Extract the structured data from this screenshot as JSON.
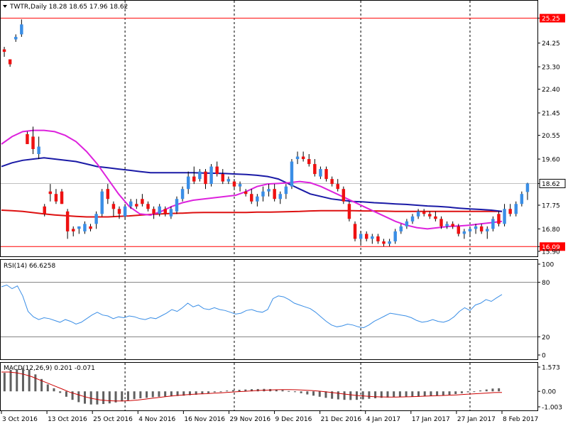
{
  "chart_data": [
    {
      "type": "candlestick",
      "header": "TWTR,Daily  18.28 18.65 17.96 18.62",
      "yaxis_ticks": [
        "25.25",
        "24.25",
        "23.30",
        "22.40",
        "21.45",
        "20.55",
        "19.60",
        "18.62",
        "17.75",
        "16.80",
        "16.09",
        "15.90"
      ],
      "ylim": [
        15.7,
        25.95
      ],
      "hlines": [
        {
          "value": 25.25,
          "label": "25.25",
          "color": "#ff0000"
        },
        {
          "value": 16.09,
          "label": "16.09",
          "color": "#ff0000"
        },
        {
          "value": 18.62,
          "label": "18.62",
          "color": "#c0c0c0"
        }
      ],
      "up_color": "#3a8ee6",
      "down_color": "#ee1111",
      "candles": [
        [
          24.0,
          24.1,
          23.7,
          23.9
        ],
        [
          23.6,
          23.6,
          23.3,
          23.4
        ],
        [
          24.4,
          24.6,
          24.3,
          24.5
        ],
        [
          24.6,
          25.2,
          24.5,
          25.0
        ],
        [
          20.6,
          20.7,
          20.2,
          20.2
        ],
        [
          20.5,
          20.9,
          19.8,
          20.0
        ],
        [
          19.8,
          20.5,
          19.6,
          20.1
        ],
        [
          17.7,
          17.8,
          17.3,
          17.4
        ],
        [
          18.3,
          18.6,
          17.9,
          18.2
        ],
        [
          18.2,
          18.4,
          17.8,
          17.9
        ],
        [
          18.3,
          18.4,
          17.8,
          17.8
        ],
        [
          17.5,
          17.6,
          16.4,
          16.7
        ],
        [
          16.8,
          16.9,
          16.5,
          16.7
        ],
        [
          16.8,
          16.9,
          16.6,
          16.9
        ],
        [
          16.7,
          17.1,
          16.6,
          17.0
        ],
        [
          16.9,
          17.0,
          16.7,
          16.8
        ],
        [
          17.0,
          17.5,
          16.8,
          17.4
        ],
        [
          17.4,
          18.4,
          17.3,
          18.3
        ],
        [
          18.4,
          18.6,
          17.8,
          18.0
        ],
        [
          17.8,
          17.9,
          17.3,
          17.6
        ],
        [
          17.6,
          17.7,
          17.2,
          17.4
        ],
        [
          17.3,
          17.8,
          17.2,
          17.7
        ],
        [
          17.7,
          18.0,
          17.6,
          17.9
        ],
        [
          17.8,
          18.0,
          17.6,
          17.7
        ],
        [
          18.0,
          18.2,
          17.7,
          17.8
        ],
        [
          17.8,
          17.9,
          17.5,
          17.6
        ],
        [
          17.6,
          17.7,
          17.2,
          17.4
        ],
        [
          17.4,
          17.8,
          17.3,
          17.7
        ],
        [
          17.6,
          17.7,
          17.3,
          17.4
        ],
        [
          17.3,
          17.7,
          17.2,
          17.6
        ],
        [
          17.5,
          18.1,
          17.4,
          18.0
        ],
        [
          18.0,
          18.5,
          17.9,
          18.4
        ],
        [
          18.4,
          19.1,
          18.2,
          18.9
        ],
        [
          18.9,
          19.3,
          18.6,
          18.7
        ],
        [
          18.8,
          19.2,
          18.7,
          19.1
        ],
        [
          19.1,
          19.2,
          18.4,
          18.6
        ],
        [
          18.6,
          19.4,
          18.5,
          19.3
        ],
        [
          19.3,
          19.5,
          18.9,
          19.0
        ],
        [
          19.0,
          19.2,
          18.6,
          18.7
        ],
        [
          18.7,
          18.9,
          18.6,
          18.8
        ],
        [
          18.7,
          18.8,
          18.4,
          18.5
        ],
        [
          18.5,
          18.7,
          18.3,
          18.6
        ],
        [
          18.3,
          18.4,
          18.1,
          18.2
        ],
        [
          18.2,
          18.4,
          17.8,
          17.9
        ],
        [
          17.9,
          18.2,
          17.7,
          18.1
        ],
        [
          18.1,
          18.5,
          17.9,
          18.3
        ],
        [
          18.3,
          18.6,
          18.1,
          18.4
        ],
        [
          18.4,
          18.6,
          17.9,
          18.0
        ],
        [
          18.0,
          18.3,
          17.8,
          18.2
        ],
        [
          18.2,
          18.6,
          18.0,
          18.5
        ],
        [
          18.5,
          19.6,
          18.4,
          19.5
        ],
        [
          19.6,
          19.9,
          19.4,
          19.7
        ],
        [
          19.7,
          19.9,
          19.5,
          19.6
        ],
        [
          19.6,
          19.8,
          19.3,
          19.4
        ],
        [
          19.4,
          19.6,
          18.9,
          19.0
        ],
        [
          18.9,
          19.3,
          18.8,
          19.2
        ],
        [
          19.2,
          19.3,
          18.7,
          18.8
        ],
        [
          18.8,
          18.9,
          18.5,
          18.6
        ],
        [
          18.6,
          18.8,
          18.3,
          18.4
        ],
        [
          18.4,
          18.5,
          17.8,
          17.9
        ],
        [
          17.8,
          17.9,
          17.1,
          17.2
        ],
        [
          17.0,
          17.1,
          16.3,
          16.4
        ],
        [
          16.4,
          16.7,
          16.2,
          16.6
        ],
        [
          16.6,
          16.7,
          16.3,
          16.4
        ],
        [
          16.4,
          16.6,
          16.2,
          16.5
        ],
        [
          16.5,
          16.6,
          16.2,
          16.3
        ],
        [
          16.3,
          16.4,
          16.1,
          16.2
        ],
        [
          16.2,
          16.4,
          16.1,
          16.3
        ],
        [
          16.3,
          16.8,
          16.2,
          16.7
        ],
        [
          16.7,
          17.0,
          16.6,
          16.9
        ],
        [
          16.9,
          17.2,
          16.8,
          17.1
        ],
        [
          17.1,
          17.4,
          17.0,
          17.3
        ],
        [
          17.3,
          17.6,
          17.2,
          17.5
        ],
        [
          17.5,
          17.6,
          17.3,
          17.4
        ],
        [
          17.4,
          17.5,
          17.2,
          17.3
        ],
        [
          17.3,
          17.5,
          17.1,
          17.2
        ],
        [
          17.2,
          17.3,
          16.8,
          16.9
        ],
        [
          16.9,
          17.1,
          16.8,
          17.0
        ],
        [
          17.0,
          17.1,
          16.8,
          16.9
        ],
        [
          16.9,
          17.0,
          16.5,
          16.6
        ],
        [
          16.6,
          16.8,
          16.4,
          16.7
        ],
        [
          16.7,
          16.9,
          16.5,
          16.8
        ],
        [
          16.8,
          17.0,
          16.6,
          16.9
        ],
        [
          16.9,
          17.0,
          16.6,
          16.7
        ],
        [
          16.7,
          16.9,
          16.4,
          16.8
        ],
        [
          16.8,
          17.3,
          16.7,
          17.2
        ],
        [
          17.4,
          17.5,
          16.9,
          17.0
        ],
        [
          17.0,
          17.8,
          16.9,
          17.6
        ],
        [
          17.6,
          17.8,
          17.3,
          17.4
        ],
        [
          17.4,
          17.9,
          17.3,
          17.8
        ],
        [
          17.8,
          18.3,
          17.7,
          18.2
        ],
        [
          18.28,
          18.65,
          17.96,
          18.62
        ]
      ],
      "ma_blue": [
        19.3,
        19.45,
        19.55,
        19.6,
        19.65,
        19.6,
        19.55,
        19.5,
        19.4,
        19.3,
        19.25,
        19.2,
        19.15,
        19.1,
        19.05,
        19.05,
        19.05,
        19.05,
        19.05,
        19.04,
        19.03,
        19.02,
        19.0,
        18.98,
        18.95,
        18.9,
        18.8,
        18.6,
        18.4,
        18.2,
        18.1,
        18.0,
        17.95,
        17.9,
        17.88,
        17.85,
        17.83,
        17.8,
        17.78,
        17.75,
        17.72,
        17.7,
        17.67,
        17.63,
        17.6,
        17.58,
        17.55,
        17.5
      ],
      "ma_red": [
        17.55,
        17.53,
        17.5,
        17.45,
        17.4,
        17.36,
        17.33,
        17.3,
        17.28,
        17.28,
        17.28,
        17.3,
        17.32,
        17.35,
        17.38,
        17.4,
        17.42,
        17.43,
        17.45,
        17.46,
        17.46,
        17.46,
        17.46,
        17.46,
        17.47,
        17.47,
        17.48,
        17.49,
        17.5,
        17.52,
        17.53,
        17.53,
        17.53,
        17.53,
        17.52,
        17.52,
        17.51,
        17.5,
        17.5,
        17.5,
        17.5,
        17.5,
        17.5,
        17.5,
        17.5,
        17.5,
        17.5,
        17.5
      ],
      "ma_magenta": [
        20.2,
        20.5,
        20.7,
        20.75,
        20.75,
        20.7,
        20.55,
        20.3,
        19.9,
        19.4,
        18.8,
        18.2,
        17.7,
        17.4,
        17.35,
        17.5,
        17.7,
        17.85,
        17.95,
        18.0,
        18.05,
        18.1,
        18.15,
        18.3,
        18.5,
        18.6,
        18.62,
        18.65,
        18.7,
        18.65,
        18.5,
        18.3,
        18.1,
        17.9,
        17.7,
        17.5,
        17.3,
        17.1,
        16.95,
        16.85,
        16.8,
        16.85,
        16.9,
        16.92,
        16.95,
        17.0,
        17.05,
        17.1
      ]
    },
    {
      "type": "line",
      "header": "RSI(14) 66.6258",
      "yaxis_ticks": [
        "100",
        "80",
        "20",
        "0"
      ],
      "ylim": [
        0,
        100
      ],
      "levels": [
        80,
        20
      ],
      "color": "#3a8ee6",
      "values": [
        75,
        77,
        73,
        76,
        65,
        48,
        42,
        39,
        41,
        40,
        38,
        36,
        39,
        37,
        34,
        36,
        40,
        44,
        47,
        44,
        43,
        40,
        42,
        41,
        43,
        42,
        40,
        39,
        41,
        40,
        43,
        46,
        50,
        48,
        52,
        57,
        53,
        55,
        51,
        50,
        52,
        50,
        49,
        47,
        45,
        46,
        49,
        50,
        48,
        47,
        50,
        62,
        65,
        64,
        61,
        57,
        55,
        53,
        51,
        47,
        42,
        37,
        33,
        31,
        32,
        34,
        33,
        31,
        30,
        33,
        37,
        40,
        43,
        46,
        45,
        44,
        43,
        41,
        38,
        36,
        37,
        39,
        37,
        36,
        38,
        42,
        48,
        52,
        49,
        55,
        57,
        61,
        59,
        63,
        66.6
      ],
      "line_count": 95
    },
    {
      "type": "histogram_line",
      "header": "MACD(12,26,9) 0.201 -0.071",
      "yaxis_ticks": [
        "1.573",
        "0.00",
        "-1.003"
      ],
      "ylim": [
        -1.003,
        1.573
      ],
      "hist_color": "#606060",
      "signal_color": "#cc0000",
      "hist": [
        1.2,
        1.4,
        1.45,
        1.5,
        1.4,
        1.1,
        0.8,
        0.45,
        0.2,
        -0.1,
        -0.35,
        -0.55,
        -0.7,
        -0.8,
        -0.85,
        -0.85,
        -0.82,
        -0.78,
        -0.72,
        -0.65,
        -0.58,
        -0.5,
        -0.45,
        -0.42,
        -0.38,
        -0.35,
        -0.33,
        -0.32,
        -0.3,
        -0.28,
        -0.25,
        -0.22,
        -0.18,
        -0.12,
        -0.06,
        0.0,
        0.05,
        0.08,
        0.1,
        0.12,
        0.14,
        0.15,
        0.16,
        0.15,
        0.12,
        0.08,
        0.02,
        -0.05,
        -0.12,
        -0.2,
        -0.28,
        -0.35,
        -0.42,
        -0.48,
        -0.52,
        -0.55,
        -0.56,
        -0.55,
        -0.52,
        -0.48,
        -0.45,
        -0.42,
        -0.4,
        -0.38,
        -0.36,
        -0.35,
        -0.34,
        -0.33,
        -0.31,
        -0.29,
        -0.27,
        -0.25,
        -0.22,
        -0.18,
        -0.12,
        -0.06,
        0.0,
        0.06,
        0.12,
        0.18,
        0.2
      ],
      "signal": [
        1.25,
        1.25,
        1.2,
        1.1,
        0.95,
        0.75,
        0.55,
        0.35,
        0.15,
        -0.05,
        -0.2,
        -0.35,
        -0.47,
        -0.55,
        -0.6,
        -0.62,
        -0.62,
        -0.6,
        -0.56,
        -0.5,
        -0.44,
        -0.38,
        -0.32,
        -0.27,
        -0.23,
        -0.2,
        -0.17,
        -0.15,
        -0.12,
        -0.09,
        -0.06,
        -0.03,
        0.0,
        0.03,
        0.06,
        0.08,
        0.1,
        0.11,
        0.11,
        0.1,
        0.08,
        0.05,
        0.01,
        -0.04,
        -0.1,
        -0.16,
        -0.22,
        -0.27,
        -0.31,
        -0.34,
        -0.36,
        -0.37,
        -0.37,
        -0.36,
        -0.35,
        -0.33,
        -0.31,
        -0.29,
        -0.27,
        -0.25,
        -0.23,
        -0.2,
        -0.17,
        -0.14,
        -0.11,
        -0.08,
        -0.071
      ]
    }
  ],
  "xaxis": {
    "labels": [
      "3 Oct 2016",
      "13 Oct 2016",
      "25 Oct 2016",
      "4 Nov 2016",
      "16 Nov 2016",
      "29 Nov 2016",
      "9 Dec 2016",
      "21 Dec 2016",
      "4 Jan 2017",
      "17 Jan 2017",
      "27 Jan 2017",
      "8 Feb 2017"
    ]
  }
}
